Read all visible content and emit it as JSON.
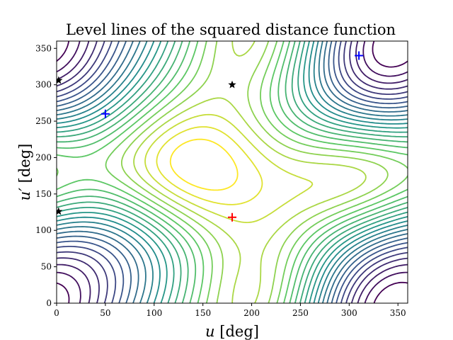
{
  "chart_data": {
    "type": "contour",
    "title": "Level lines of the squared distance function",
    "xlabel_var": "u",
    "xlabel_unit": " [deg]",
    "ylabel_var": "u′",
    "ylabel_unit": " [deg]",
    "xlim": [
      0,
      360
    ],
    "ylim": [
      0,
      360
    ],
    "xticks": [
      "0",
      "50",
      "100",
      "150",
      "200",
      "250",
      "300",
      "350"
    ],
    "yticks": [
      "0",
      "50",
      "100",
      "150",
      "200",
      "250",
      "300",
      "350"
    ],
    "colormap": "viridis",
    "colormap_stops": [
      "#440154",
      "#3b528b",
      "#21918c",
      "#5ec962",
      "#fde725"
    ],
    "contour_levels": 24,
    "markers": [
      {
        "type": "plus",
        "color": "#ff0000",
        "x": 180,
        "y": 118
      },
      {
        "type": "plus",
        "color": "#0000ff",
        "x": 50,
        "y": 260
      },
      {
        "type": "plus",
        "color": "#0000ff",
        "x": 310,
        "y": 340
      },
      {
        "type": "star",
        "color": "#000000",
        "x": 180,
        "y": 300
      },
      {
        "type": "star",
        "color": "#000000",
        "x": 2,
        "y": 306
      },
      {
        "type": "star",
        "color": "#000000",
        "x": 2,
        "y": 126
      }
    ]
  }
}
